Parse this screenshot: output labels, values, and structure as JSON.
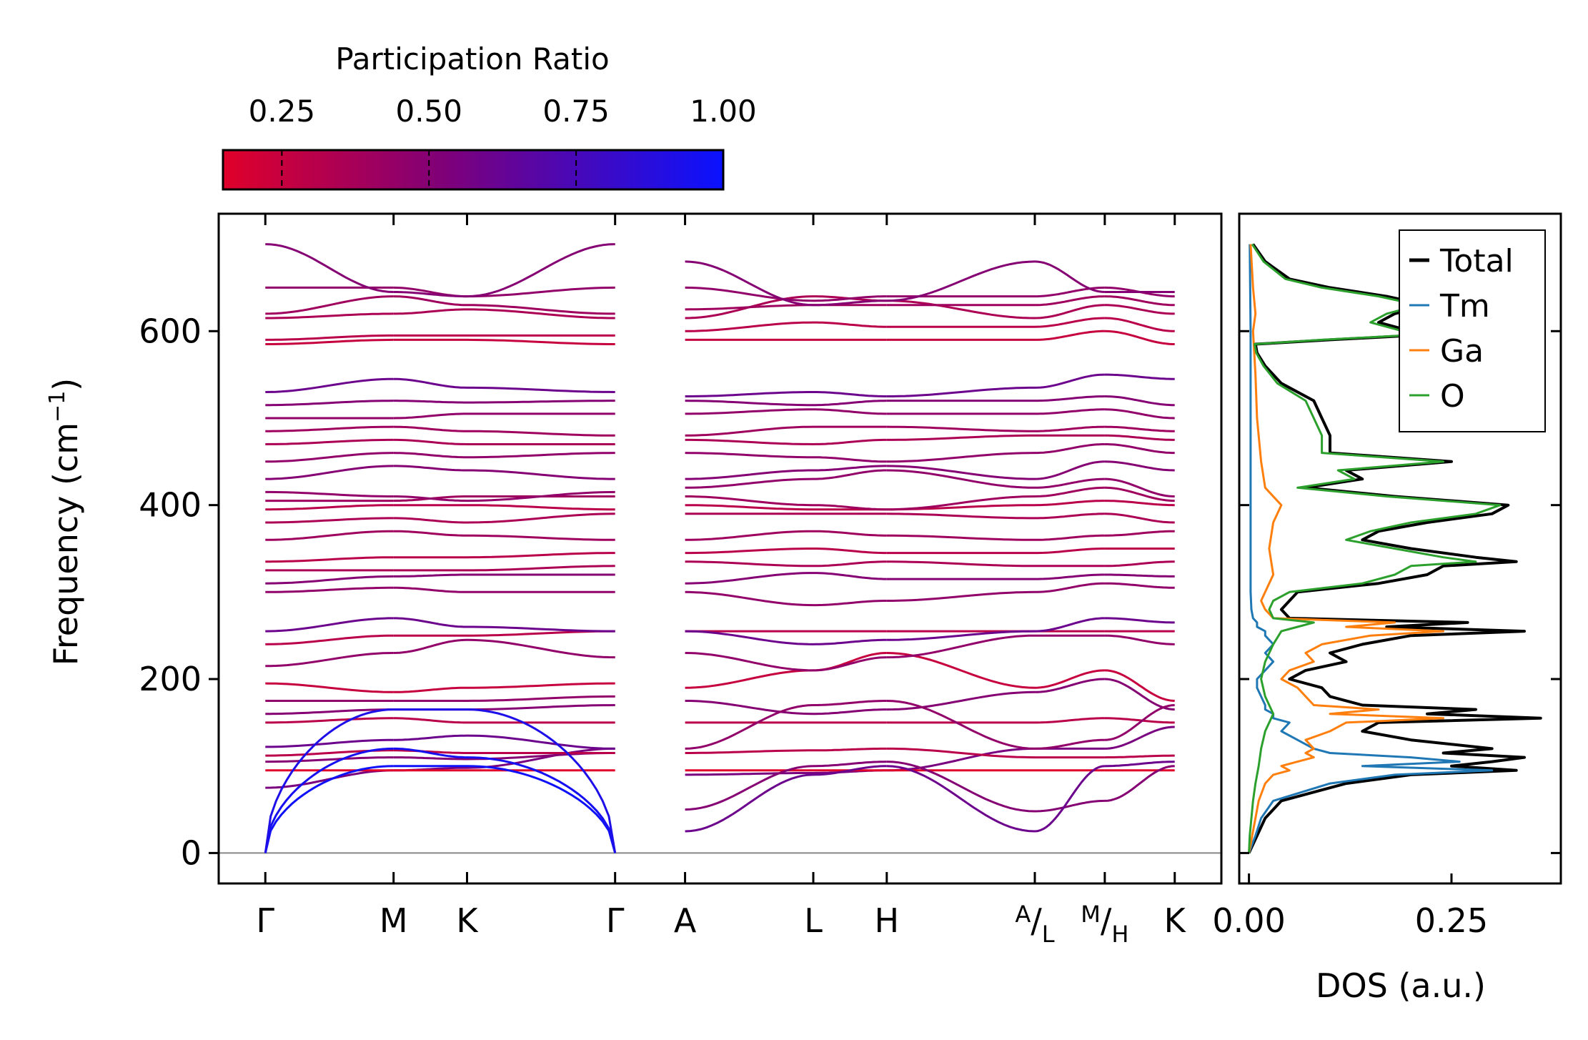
{
  "colors": {
    "low": "#e0002a",
    "mid": "#7d007a",
    "high": "#0a12ff",
    "total": "#000000",
    "tm": "#1f77b4",
    "ga": "#ff7f0e",
    "o": "#2ca02c",
    "zero_line": "#888888"
  },
  "chart_data": [
    {
      "type": "line",
      "name": "phonon-band-structure",
      "ylabel": "Frequency (cm",
      "ylabel_sup": "−1",
      "ylabel_close": ")",
      "ylim": [
        -35,
        735
      ],
      "xlim": [
        -0.4,
        8.2
      ],
      "yticks": [
        {
          "v": 0,
          "label": "0"
        },
        {
          "v": 200,
          "label": "200"
        },
        {
          "v": 400,
          "label": "400"
        },
        {
          "v": 600,
          "label": "600"
        }
      ],
      "high_symmetry_points": [
        {
          "pos": 0,
          "label": "Γ"
        },
        {
          "pos": 1.1,
          "label": "M"
        },
        {
          "pos": 1.73,
          "label": "K"
        },
        {
          "pos": 3,
          "label": "Γ"
        },
        {
          "pos": 3.6,
          "label": "A"
        },
        {
          "pos": 4.7,
          "label": "L"
        },
        {
          "pos": 5.33,
          "label": "H"
        },
        {
          "pos": 6.6,
          "label": "A/L",
          "sup": "A",
          "sub": "L"
        },
        {
          "pos": 7.2,
          "label": "M/H",
          "sup": "M",
          "sub": "H"
        },
        {
          "pos": 7.8,
          "label": "K"
        }
      ],
      "segments": [
        {
          "from": 0,
          "to": 3
        },
        {
          "from": 3.6,
          "to": 6.6
        },
        {
          "from": 6.6,
          "to": 7.2
        },
        {
          "from": 7.2,
          "to": 7.8
        }
      ],
      "colorbar": {
        "label": "Participation Ratio",
        "range": [
          0.15,
          1.0
        ],
        "ticks": [
          {
            "v": 0.25,
            "label": "0.25"
          },
          {
            "v": 0.5,
            "label": "0.50"
          },
          {
            "v": 0.75,
            "label": "0.75"
          },
          {
            "v": 1.0,
            "label": "1.00"
          }
        ]
      },
      "acoustic_branches": [
        {
          "gamma": 0,
          "m": 100,
          "k": 100,
          "pr": 0.98
        },
        {
          "gamma": 0,
          "m": 120,
          "k": 110,
          "pr": 0.95
        },
        {
          "gamma": 0,
          "m": 165,
          "k": 165,
          "pr": 0.92
        }
      ],
      "optical_bands": [
        {
          "values": [
            75,
            95,
            98,
            120,
            90,
            92,
            95,
            120,
            120,
            145
          ],
          "pr": 0.55
        },
        {
          "values": [
            95,
            95,
            95,
            95,
            95,
            95,
            95,
            95,
            95,
            95
          ],
          "pr": 0.15
        },
        {
          "values": [
            105,
            110,
            108,
            115,
            50,
            100,
            105,
            48,
            60,
            100
          ],
          "pr": 0.5
        },
        {
          "values": [
            112,
            118,
            115,
            115,
            115,
            118,
            120,
            110,
            110,
            112
          ],
          "pr": 0.3
        },
        {
          "values": [
            122,
            130,
            135,
            120,
            25,
            90,
            100,
            25,
            100,
            105
          ],
          "pr": 0.6
        },
        {
          "values": [
            150,
            155,
            150,
            150,
            150,
            150,
            150,
            150,
            155,
            150
          ],
          "pr": 0.3
        },
        {
          "values": [
            160,
            165,
            165,
            170,
            175,
            160,
            165,
            185,
            200,
            165
          ],
          "pr": 0.5
        },
        {
          "values": [
            175,
            175,
            175,
            180,
            120,
            170,
            175,
            120,
            130,
            170
          ],
          "pr": 0.45
        },
        {
          "values": [
            195,
            185,
            190,
            195,
            190,
            210,
            230,
            190,
            210,
            175
          ],
          "pr": 0.25
        },
        {
          "values": [
            215,
            230,
            245,
            225,
            230,
            210,
            225,
            250,
            250,
            240
          ],
          "pr": 0.45
        },
        {
          "values": [
            240,
            250,
            250,
            255,
            255,
            255,
            255,
            255,
            255,
            255
          ],
          "pr": 0.3
        },
        {
          "values": [
            255,
            270,
            260,
            255,
            255,
            240,
            245,
            255,
            270,
            265
          ],
          "pr": 0.6
        },
        {
          "values": [
            300,
            305,
            300,
            300,
            300,
            285,
            290,
            300,
            310,
            305
          ],
          "pr": 0.45
        },
        {
          "values": [
            310,
            318,
            320,
            320,
            310,
            322,
            315,
            315,
            320,
            318
          ],
          "pr": 0.5
        },
        {
          "values": [
            325,
            325,
            325,
            330,
            335,
            330,
            335,
            330,
            330,
            335
          ],
          "pr": 0.35
        },
        {
          "values": [
            335,
            340,
            340,
            345,
            345,
            350,
            345,
            345,
            350,
            350
          ],
          "pr": 0.3
        },
        {
          "values": [
            360,
            370,
            365,
            360,
            360,
            370,
            365,
            360,
            365,
            370
          ],
          "pr": 0.4
        },
        {
          "values": [
            380,
            385,
            380,
            390,
            390,
            390,
            390,
            385,
            390,
            380
          ],
          "pr": 0.35
        },
        {
          "values": [
            395,
            400,
            400,
            395,
            400,
            395,
            395,
            400,
            405,
            400
          ],
          "pr": 0.3
        },
        {
          "values": [
            405,
            405,
            410,
            410,
            410,
            400,
            395,
            410,
            420,
            405
          ],
          "pr": 0.4
        },
        {
          "values": [
            415,
            410,
            405,
            415,
            420,
            430,
            440,
            420,
            430,
            410
          ],
          "pr": 0.45
        },
        {
          "values": [
            430,
            445,
            440,
            430,
            430,
            440,
            445,
            430,
            450,
            440
          ],
          "pr": 0.5
        },
        {
          "values": [
            450,
            460,
            455,
            460,
            460,
            455,
            450,
            460,
            470,
            460
          ],
          "pr": 0.45
        },
        {
          "values": [
            470,
            475,
            470,
            470,
            475,
            470,
            475,
            480,
            480,
            475
          ],
          "pr": 0.35
        },
        {
          "values": [
            485,
            490,
            485,
            480,
            480,
            490,
            490,
            485,
            490,
            485
          ],
          "pr": 0.4
        },
        {
          "values": [
            500,
            500,
            505,
            505,
            505,
            510,
            505,
            505,
            510,
            500
          ],
          "pr": 0.45
        },
        {
          "values": [
            515,
            520,
            518,
            520,
            520,
            515,
            520,
            520,
            525,
            515
          ],
          "pr": 0.5
        },
        {
          "values": [
            530,
            545,
            535,
            530,
            525,
            530,
            525,
            535,
            550,
            545
          ],
          "pr": 0.6
        },
        {
          "values": [
            585,
            590,
            590,
            585,
            590,
            590,
            590,
            590,
            600,
            585
          ],
          "pr": 0.25
        },
        {
          "values": [
            590,
            595,
            595,
            595,
            600,
            610,
            605,
            605,
            615,
            600
          ],
          "pr": 0.3
        },
        {
          "values": [
            615,
            620,
            625,
            615,
            615,
            640,
            635,
            615,
            630,
            620
          ],
          "pr": 0.35
        },
        {
          "values": [
            620,
            640,
            630,
            620,
            625,
            630,
            630,
            630,
            640,
            630
          ],
          "pr": 0.4
        },
        {
          "values": [
            650,
            650,
            640,
            650,
            650,
            635,
            640,
            640,
            650,
            640
          ],
          "pr": 0.45
        },
        {
          "values": [
            700,
            645,
            640,
            700,
            680,
            630,
            635,
            680,
            645,
            645
          ],
          "pr": 0.5
        }
      ]
    },
    {
      "type": "line",
      "name": "phonon-dos",
      "xlabel": "DOS (a.u.)",
      "xlim": [
        -0.012,
        0.385
      ],
      "ylim": [
        -35,
        735
      ],
      "xticks": [
        {
          "v": 0,
          "label": "0.00"
        },
        {
          "v": 0.25,
          "label": "0.25"
        }
      ],
      "yticks": [
        0,
        200,
        400,
        600
      ],
      "legend_position": "top-right",
      "series": [
        {
          "name": "Total",
          "freq": [
            0,
            10,
            20,
            40,
            60,
            80,
            90,
            95,
            100,
            105,
            110,
            115,
            120,
            130,
            140,
            150,
            155,
            160,
            165,
            170,
            180,
            190,
            200,
            210,
            220,
            230,
            240,
            250,
            255,
            260,
            265,
            270,
            280,
            290,
            300,
            310,
            320,
            330,
            335,
            340,
            350,
            360,
            370,
            380,
            390,
            400,
            410,
            420,
            430,
            440,
            450,
            460,
            480,
            500,
            520,
            540,
            560,
            575,
            585,
            590,
            595,
            600,
            610,
            620,
            630,
            640,
            650,
            660,
            680,
            700
          ],
          "values": [
            0,
            0.005,
            0.01,
            0.02,
            0.04,
            0.12,
            0.2,
            0.33,
            0.25,
            0.3,
            0.34,
            0.24,
            0.3,
            0.2,
            0.14,
            0.16,
            0.36,
            0.22,
            0.28,
            0.14,
            0.1,
            0.09,
            0.05,
            0.07,
            0.12,
            0.1,
            0.14,
            0.2,
            0.34,
            0.17,
            0.27,
            0.05,
            0.04,
            0.05,
            0.06,
            0.16,
            0.22,
            0.24,
            0.33,
            0.28,
            0.2,
            0.14,
            0.16,
            0.22,
            0.3,
            0.32,
            0.18,
            0.07,
            0.14,
            0.12,
            0.25,
            0.1,
            0.1,
            0.09,
            0.08,
            0.04,
            0.02,
            0.01,
            0.008,
            0.1,
            0.2,
            0.2,
            0.16,
            0.18,
            0.22,
            0.17,
            0.1,
            0.05,
            0.02,
            0.005
          ]
        },
        {
          "name": "Tm",
          "freq": [
            0,
            10,
            20,
            40,
            60,
            80,
            90,
            95,
            100,
            105,
            110,
            115,
            120,
            130,
            140,
            150,
            155,
            160,
            165,
            170,
            180,
            190,
            200,
            210,
            220,
            230,
            240,
            250,
            255,
            260,
            265,
            270,
            280,
            300,
            400,
            500,
            600,
            700
          ],
          "values": [
            0,
            0.004,
            0.008,
            0.015,
            0.03,
            0.1,
            0.18,
            0.3,
            0.14,
            0.26,
            0.2,
            0.1,
            0.08,
            0.06,
            0.04,
            0.05,
            0.03,
            0.03,
            0.02,
            0.02,
            0.015,
            0.01,
            0.01,
            0.02,
            0.03,
            0.02,
            0.03,
            0.02,
            0.02,
            0.01,
            0.01,
            0.005,
            0.003,
            0.002,
            0.002,
            0.002,
            0.002,
            0.001
          ]
        },
        {
          "name": "Ga",
          "freq": [
            0,
            10,
            20,
            40,
            60,
            80,
            90,
            95,
            100,
            105,
            110,
            115,
            120,
            130,
            140,
            150,
            155,
            160,
            165,
            170,
            180,
            190,
            200,
            210,
            220,
            230,
            240,
            250,
            255,
            260,
            265,
            270,
            280,
            290,
            300,
            320,
            350,
            380,
            400,
            420,
            450,
            500,
            550,
            600,
            620,
            650,
            700
          ],
          "values": [
            0,
            0.002,
            0.004,
            0.008,
            0.012,
            0.02,
            0.03,
            0.05,
            0.04,
            0.06,
            0.08,
            0.07,
            0.08,
            0.07,
            0.1,
            0.12,
            0.24,
            0.1,
            0.16,
            0.08,
            0.07,
            0.06,
            0.04,
            0.05,
            0.08,
            0.07,
            0.09,
            0.15,
            0.24,
            0.12,
            0.18,
            0.03,
            0.02,
            0.015,
            0.02,
            0.03,
            0.025,
            0.03,
            0.04,
            0.02,
            0.015,
            0.01,
            0.008,
            0.005,
            0.008,
            0.005,
            0.002
          ]
        },
        {
          "name": "O",
          "freq": [
            0,
            20,
            40,
            60,
            80,
            100,
            120,
            140,
            160,
            180,
            200,
            220,
            240,
            255,
            260,
            265,
            270,
            280,
            290,
            300,
            310,
            320,
            330,
            335,
            340,
            350,
            360,
            370,
            380,
            390,
            400,
            410,
            420,
            430,
            440,
            450,
            460,
            480,
            500,
            520,
            540,
            560,
            575,
            585,
            590,
            595,
            600,
            610,
            620,
            630,
            640,
            650,
            660,
            680,
            700
          ],
          "values": [
            0,
            0.001,
            0.003,
            0.005,
            0.008,
            0.012,
            0.015,
            0.02,
            0.03,
            0.02,
            0.015,
            0.02,
            0.03,
            0.04,
            0.06,
            0.08,
            0.03,
            0.025,
            0.03,
            0.05,
            0.14,
            0.18,
            0.2,
            0.28,
            0.24,
            0.18,
            0.12,
            0.15,
            0.2,
            0.28,
            0.31,
            0.17,
            0.06,
            0.13,
            0.11,
            0.24,
            0.09,
            0.09,
            0.08,
            0.07,
            0.035,
            0.018,
            0.009,
            0.007,
            0.09,
            0.19,
            0.19,
            0.15,
            0.17,
            0.21,
            0.16,
            0.09,
            0.045,
            0.018,
            0.004
          ]
        }
      ]
    }
  ]
}
